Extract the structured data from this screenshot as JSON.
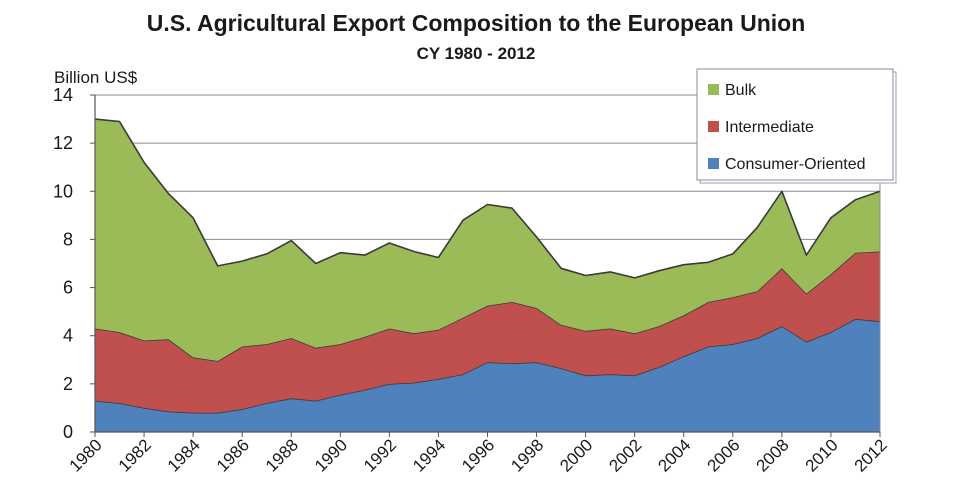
{
  "chart_data": {
    "type": "area",
    "stacked": true,
    "title": "U.S. Agricultural Export Composition to the European Union",
    "subtitle": "CY 1980 - 2012",
    "ylabel": "Billion US$",
    "xlabel": "",
    "ylim": [
      0,
      14
    ],
    "yticks": [
      "0",
      "2",
      "4",
      "6",
      "8",
      "10",
      "12",
      "14"
    ],
    "xticks": [
      "1980",
      "1982",
      "1984",
      "1986",
      "1988",
      "1990",
      "1992",
      "1994",
      "1996",
      "1998",
      "2000",
      "2002",
      "2004",
      "2006",
      "2008",
      "2010",
      "2012"
    ],
    "grid": true,
    "legend_position": "top-right",
    "x": [
      1980,
      1981,
      1982,
      1983,
      1984,
      1985,
      1986,
      1987,
      1988,
      1989,
      1990,
      1991,
      1992,
      1993,
      1994,
      1995,
      1996,
      1997,
      1998,
      1999,
      2000,
      2001,
      2002,
      2003,
      2004,
      2005,
      2006,
      2007,
      2008,
      2009,
      2010,
      2011,
      2012
    ],
    "series": [
      {
        "name": "Consumer-Oriented",
        "color": "#4f81bd",
        "values": [
          1.3,
          1.2,
          1.0,
          0.85,
          0.8,
          0.8,
          0.95,
          1.2,
          1.4,
          1.3,
          1.55,
          1.75,
          2.0,
          2.05,
          2.2,
          2.4,
          2.9,
          2.85,
          2.9,
          2.65,
          2.35,
          2.4,
          2.35,
          2.7,
          3.15,
          3.55,
          3.65,
          3.9,
          4.4,
          3.75,
          4.15,
          4.7,
          4.6
        ]
      },
      {
        "name": "Intermediate",
        "color": "#c0504d",
        "values": [
          3.0,
          2.95,
          2.8,
          3.0,
          2.3,
          2.15,
          2.6,
          2.45,
          2.5,
          2.2,
          2.1,
          2.2,
          2.3,
          2.05,
          2.05,
          2.35,
          2.35,
          2.55,
          2.25,
          1.8,
          1.85,
          1.9,
          1.75,
          1.7,
          1.7,
          1.85,
          1.95,
          1.95,
          2.4,
          2.0,
          2.4,
          2.75,
          2.9
        ]
      },
      {
        "name": "Bulk",
        "color": "#9bbb59",
        "values": [
          8.7,
          8.75,
          7.4,
          6.05,
          5.8,
          3.95,
          3.55,
          3.75,
          4.05,
          3.5,
          3.8,
          3.4,
          3.55,
          3.4,
          3.0,
          4.05,
          4.2,
          3.9,
          2.95,
          2.35,
          2.3,
          2.35,
          2.3,
          2.3,
          2.1,
          1.65,
          1.8,
          2.65,
          3.2,
          1.6,
          2.35,
          2.2,
          2.5
        ]
      }
    ]
  }
}
